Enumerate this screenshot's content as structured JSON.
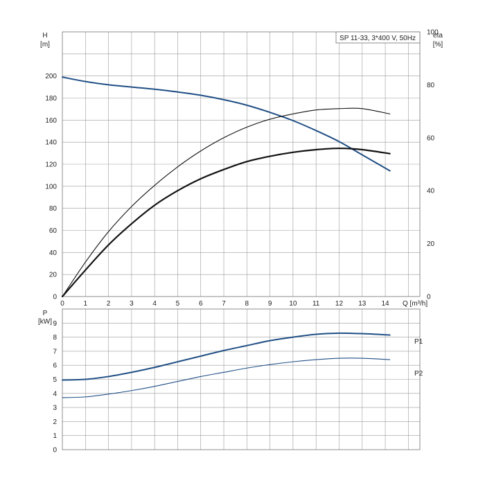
{
  "chart_data": [
    {
      "type": "line",
      "title": "SP 11-33, 3*400 V, 50Hz",
      "xlabel": "Q [m³/h]",
      "ylabel_left": [
        "H",
        "[m]"
      ],
      "ylabel_right": [
        "eta",
        "[%]"
      ],
      "xlim": [
        0,
        15.5
      ],
      "ylim_left": [
        0,
        240
      ],
      "ylim_right": [
        0,
        100
      ],
      "x_ticks": [
        0,
        1,
        2,
        3,
        4,
        5,
        6,
        7,
        8,
        9,
        10,
        11,
        12,
        13,
        14
      ],
      "y_ticks_left": [
        0,
        20,
        40,
        60,
        80,
        100,
        120,
        140,
        160,
        180,
        200
      ],
      "y_ticks_right": [
        0,
        20,
        40,
        60,
        80,
        100
      ],
      "grid": true,
      "series": [
        {
          "axis": "left",
          "color": "#1f4e85",
          "x": [
            0,
            1,
            2,
            3,
            4,
            5,
            6,
            7,
            8,
            9,
            10,
            11,
            12,
            13,
            14.2
          ],
          "y": [
            199,
            195,
            192,
            190,
            188,
            185.5,
            182.5,
            178.5,
            173.5,
            167,
            159.5,
            150.5,
            140.5,
            128.5,
            114
          ]
        },
        {
          "axis": "right",
          "color": "#111111",
          "x": [
            0,
            1,
            2,
            3,
            4,
            5,
            6,
            7,
            8,
            9,
            10,
            11,
            12,
            13,
            14.2
          ],
          "y": [
            0,
            13,
            24.5,
            34,
            42,
            49,
            55,
            60,
            64,
            67,
            69,
            70.5,
            71,
            71,
            69
          ]
        },
        {
          "axis": "right",
          "color": "#111111",
          "x": [
            0,
            1,
            2,
            3,
            4,
            5,
            6,
            7,
            8,
            9,
            10,
            11,
            12,
            13,
            14.2
          ],
          "y": [
            0,
            10,
            19.5,
            27.5,
            34.5,
            40,
            44.5,
            48,
            51,
            53,
            54.5,
            55.5,
            56,
            55.5,
            54
          ]
        }
      ]
    },
    {
      "type": "line",
      "ylabel": [
        "P",
        "[kW]"
      ],
      "xlim": [
        0,
        15.5
      ],
      "ylim": [
        0,
        10
      ],
      "y_ticks": [
        0,
        1,
        2,
        3,
        4,
        5,
        6,
        7,
        8,
        9
      ],
      "grid": true,
      "series": [
        {
          "name": "P1",
          "color": "#1f4e85",
          "x": [
            0,
            1,
            2,
            3,
            4,
            5,
            6,
            7,
            8,
            9,
            10,
            11,
            12,
            13,
            14.2
          ],
          "y": [
            4.95,
            5.0,
            5.2,
            5.5,
            5.85,
            6.25,
            6.65,
            7.05,
            7.4,
            7.75,
            8.0,
            8.2,
            8.28,
            8.25,
            8.15
          ]
        },
        {
          "name": "P2",
          "color": "#1f4e85",
          "x": [
            0,
            1,
            2,
            3,
            4,
            5,
            6,
            7,
            8,
            9,
            10,
            11,
            12,
            13,
            14.2
          ],
          "y": [
            3.7,
            3.75,
            3.95,
            4.2,
            4.5,
            4.85,
            5.2,
            5.5,
            5.8,
            6.05,
            6.25,
            6.4,
            6.5,
            6.5,
            6.4
          ]
        }
      ]
    }
  ]
}
